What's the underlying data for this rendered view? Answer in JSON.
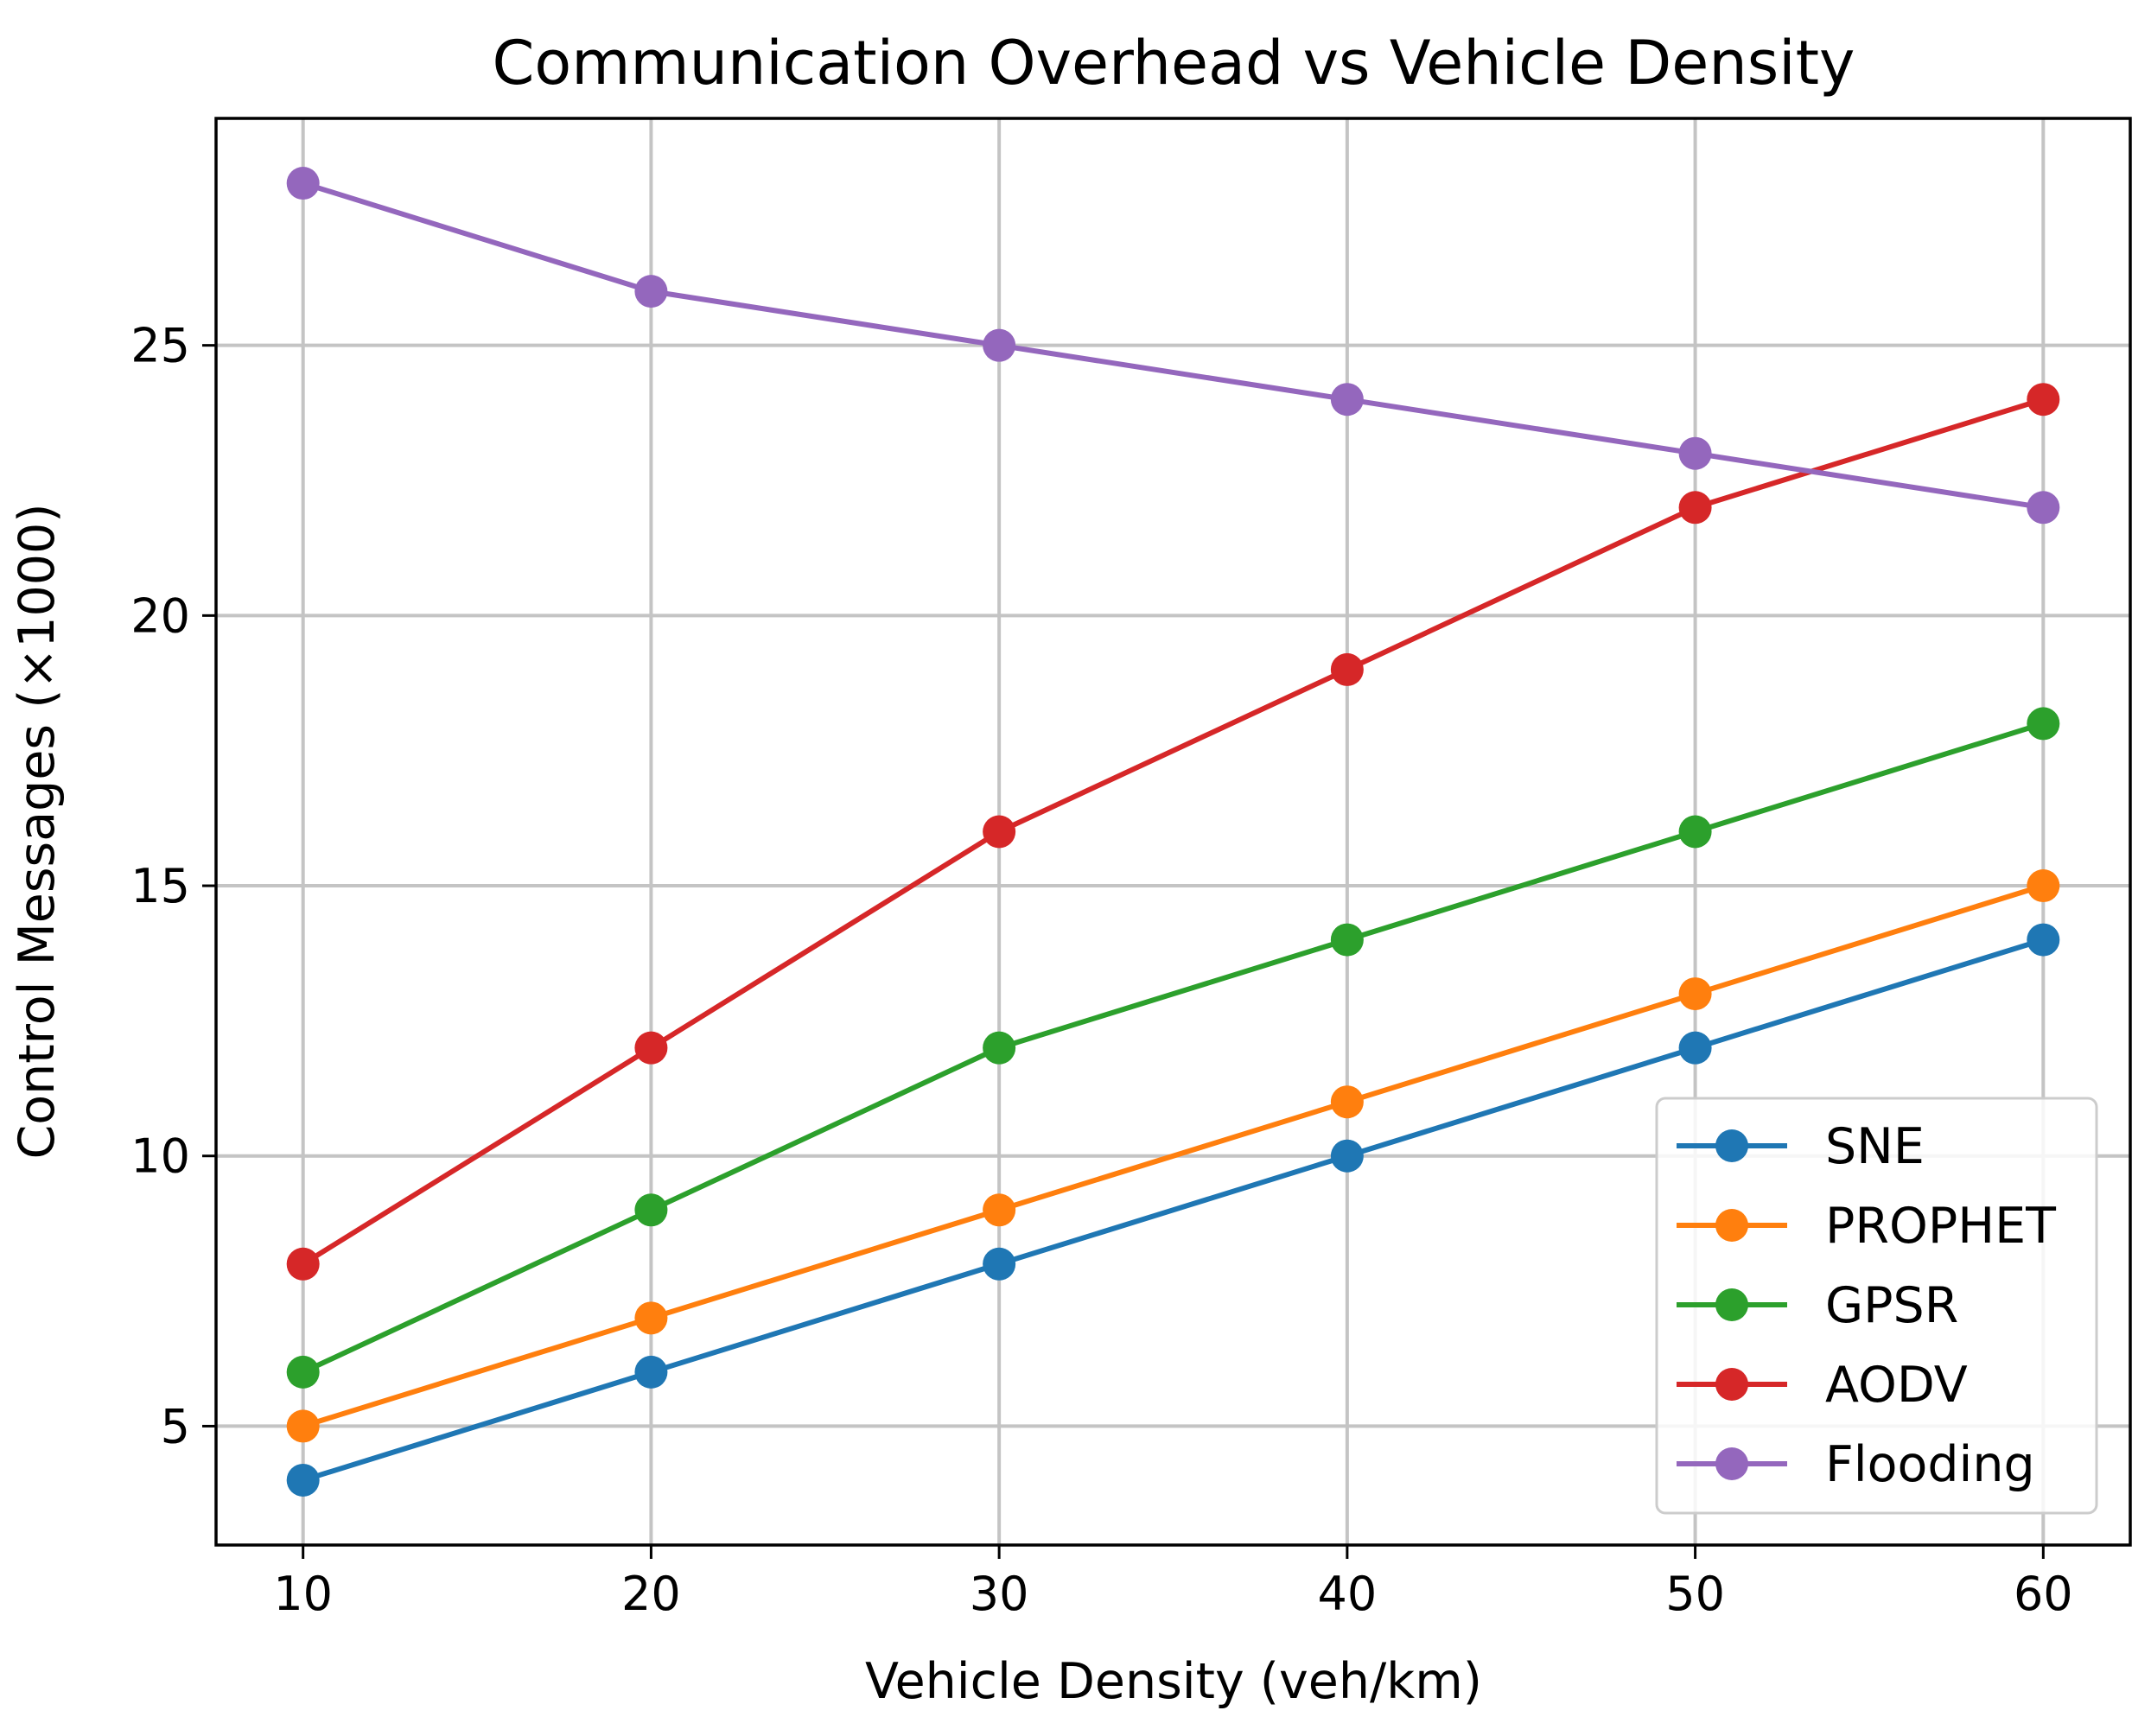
{
  "chart_data": {
    "type": "line",
    "title": "Communication Overhead vs Vehicle Density",
    "xlabel": "Vehicle Density (veh/km)",
    "ylabel": "Control Messages (×1000)",
    "x": [
      10,
      20,
      30,
      40,
      50,
      60
    ],
    "xticks": [
      10,
      20,
      30,
      40,
      50,
      60
    ],
    "yticks": [
      5,
      10,
      15,
      20,
      25
    ],
    "xlim": [
      7.5,
      62.5
    ],
    "ylim": [
      2.8,
      29.2
    ],
    "grid": true,
    "legend_position": "lower right",
    "series": [
      {
        "name": "SNE",
        "color": "#1f77b4",
        "values": [
          4,
          6,
          8,
          10,
          12,
          14
        ]
      },
      {
        "name": "PROPHET",
        "color": "#ff7f0e",
        "values": [
          5,
          7,
          9,
          11,
          13,
          15
        ]
      },
      {
        "name": "GPSR",
        "color": "#2ca02c",
        "values": [
          6,
          9,
          12,
          14,
          16,
          18
        ]
      },
      {
        "name": "AODV",
        "color": "#d62728",
        "values": [
          8,
          12,
          16,
          19,
          22,
          24
        ]
      },
      {
        "name": "Flooding",
        "color": "#9467bd",
        "values": [
          28,
          26,
          25,
          24,
          23,
          22
        ]
      }
    ]
  }
}
